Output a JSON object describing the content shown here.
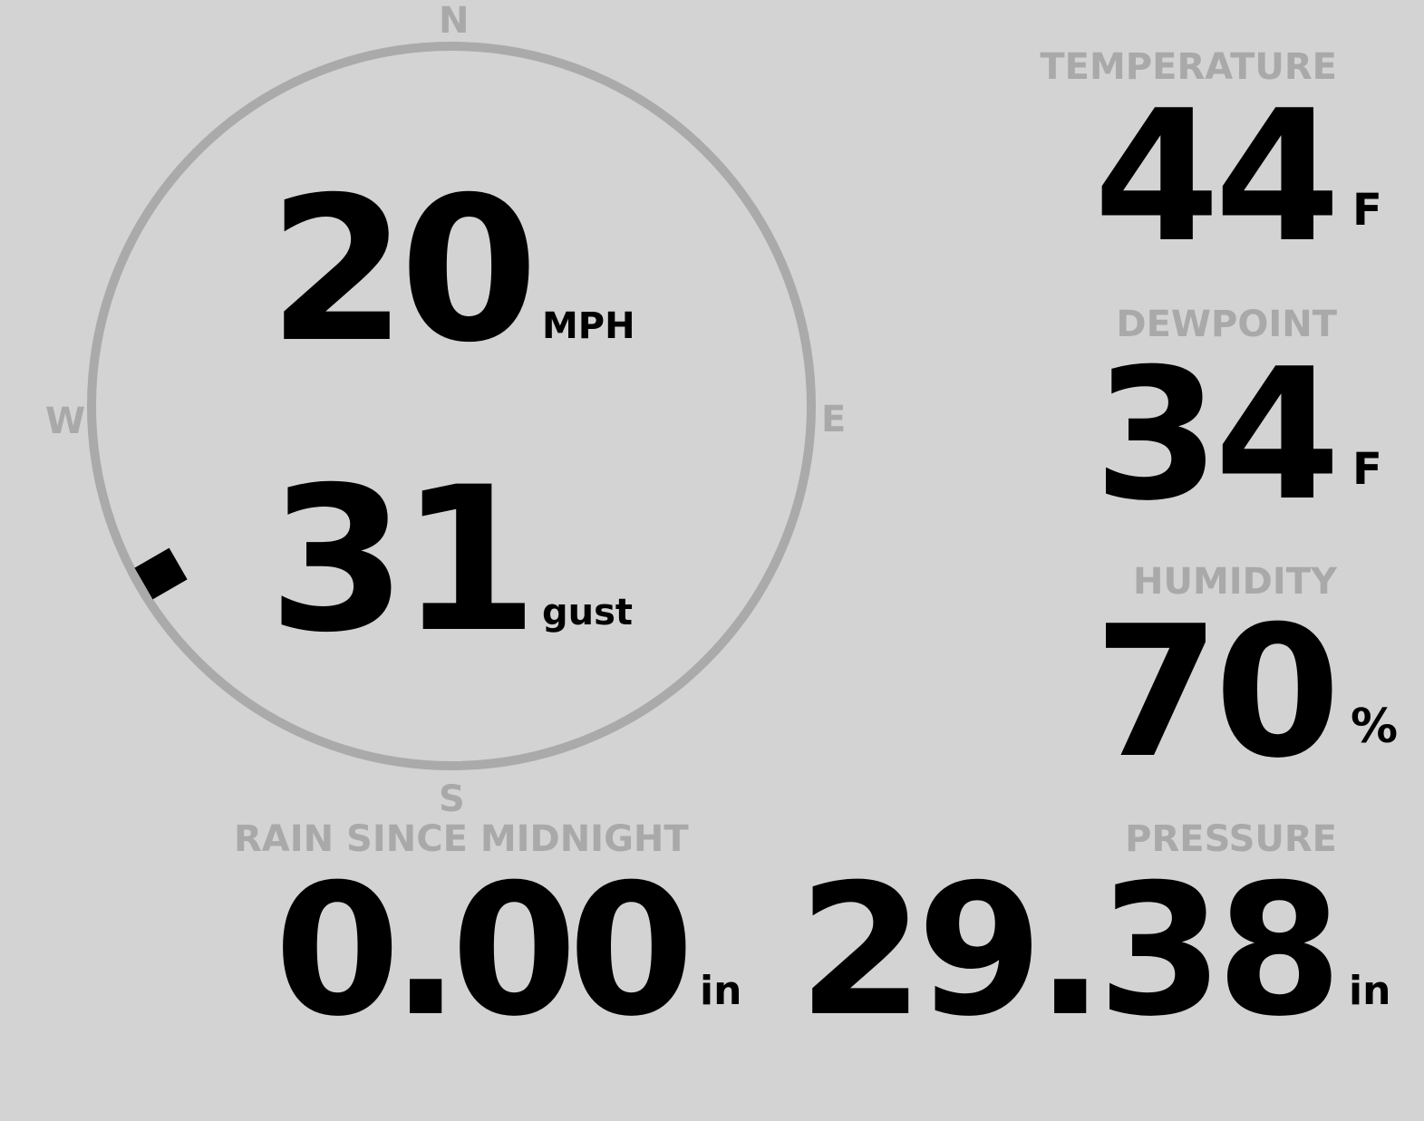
{
  "wind": {
    "speed": "20",
    "speed_unit": "MPH",
    "gust": "31",
    "gust_unit": "gust",
    "direction_deg": 240,
    "compass": {
      "n": "N",
      "e": "E",
      "s": "S",
      "w": "W"
    }
  },
  "temperature": {
    "label": "TEMPERATURE",
    "value": "44",
    "unit": "F"
  },
  "dewpoint": {
    "label": "DEWPOINT",
    "value": "34",
    "unit": "F"
  },
  "humidity": {
    "label": "HUMIDITY",
    "value": "70",
    "unit": "%"
  },
  "rain": {
    "label": "RAIN SINCE MIDNIGHT",
    "value": "0.00",
    "unit": "in"
  },
  "pressure": {
    "label": "PRESSURE",
    "value": "29.38",
    "unit": "in"
  },
  "colors": {
    "background": "#d3d3d3",
    "label": "#a9a9a9",
    "value": "#000000",
    "ring": "#aaaaaa"
  }
}
